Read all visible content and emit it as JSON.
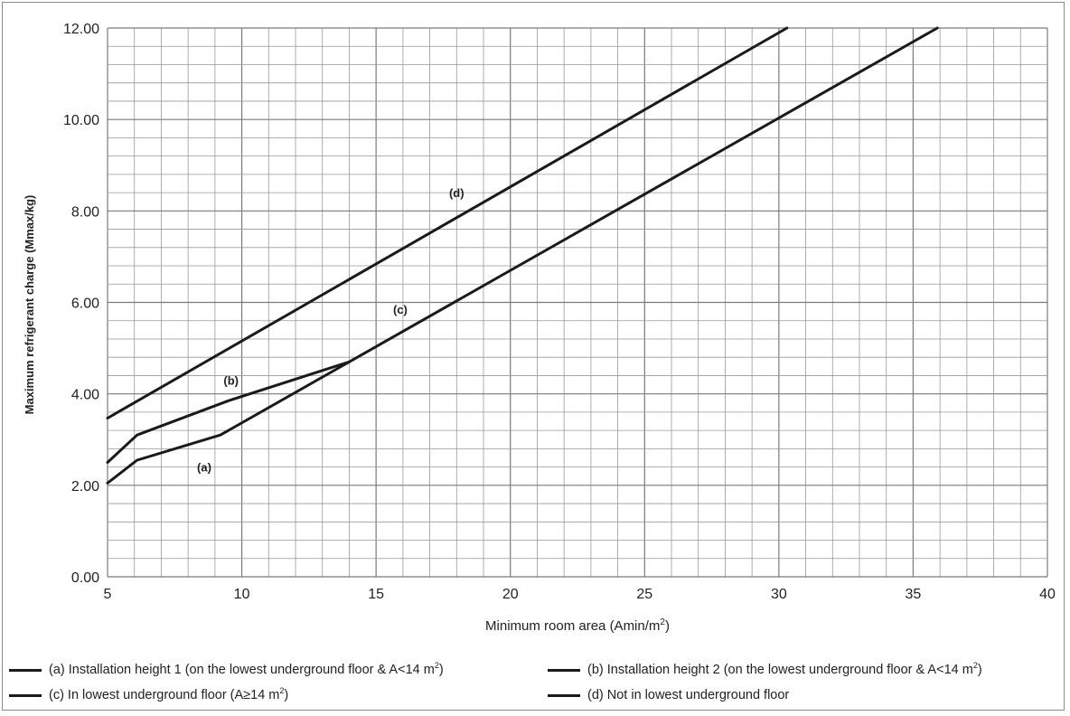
{
  "chart_data": {
    "type": "line",
    "xlabel": "Minimum room area (Amin/m²)",
    "ylabel": "Maximum refrigerant charge (Mmax/kg)",
    "xlim": [
      5,
      40
    ],
    "ylim": [
      0,
      12
    ],
    "x_ticks": [
      "5",
      "10",
      "15",
      "20",
      "25",
      "30",
      "35",
      "40"
    ],
    "y_ticks": [
      "0.00",
      "2.00",
      "4.00",
      "6.00",
      "8.00",
      "10.00",
      "12.00"
    ],
    "grid": true,
    "legend_position": "bottom",
    "series": [
      {
        "name": "(a) Installation height 1 (on the lowest underground floor & A<14 m²)",
        "tag": "(a)",
        "x": [
          5,
          6.1,
          9.2,
          14.0
        ],
        "y": [
          2.05,
          2.55,
          3.1,
          4.7
        ]
      },
      {
        "name": "(b) Installation height 2 (on the lowest underground floor & A<14 m²)",
        "tag": "(b)",
        "x": [
          5,
          6.1,
          9.5,
          14.0
        ],
        "y": [
          2.5,
          3.1,
          3.85,
          4.7
        ]
      },
      {
        "name": "(c) In lowest underground floor (A≥14 m²)",
        "tag": "(c)",
        "x": [
          14.0,
          35.9
        ],
        "y": [
          4.7,
          12.0
        ]
      },
      {
        "name": "(d) Not in lowest underground floor",
        "tag": "(d)",
        "x": [
          5,
          30.3
        ],
        "y": [
          3.47,
          12.0
        ]
      }
    ],
    "annotations": [
      {
        "text": "(a)",
        "x": 8.6,
        "y": 2.3
      },
      {
        "text": "(b)",
        "x": 9.6,
        "y": 4.2
      },
      {
        "text": "(c)",
        "x": 15.9,
        "y": 5.75
      },
      {
        "text": "(d)",
        "x": 18.0,
        "y": 8.3
      }
    ],
    "colors": {
      "line": "#1a1a1a",
      "grid": "#999999",
      "major_grid": "#7a7a7a",
      "border": "#8c8c8c"
    }
  },
  "legend": [
    {
      "before": "(a) Installation height 1 (on the lowest underground floor & A<14 m",
      "sup": "2",
      "after": ")"
    },
    {
      "before": "(b) Installation height 2 (on the lowest underground floor & A<14 m",
      "sup": "2",
      "after": ")"
    },
    {
      "before": "(c) In lowest underground floor (A≥14 m",
      "sup": "2",
      "after": ")"
    },
    {
      "before": "(d) Not in lowest underground floor",
      "sup": "",
      "after": ""
    }
  ],
  "xlabel_parts": {
    "before": "Minimum room area (Amin/m",
    "sup": "2",
    "after": ")"
  }
}
